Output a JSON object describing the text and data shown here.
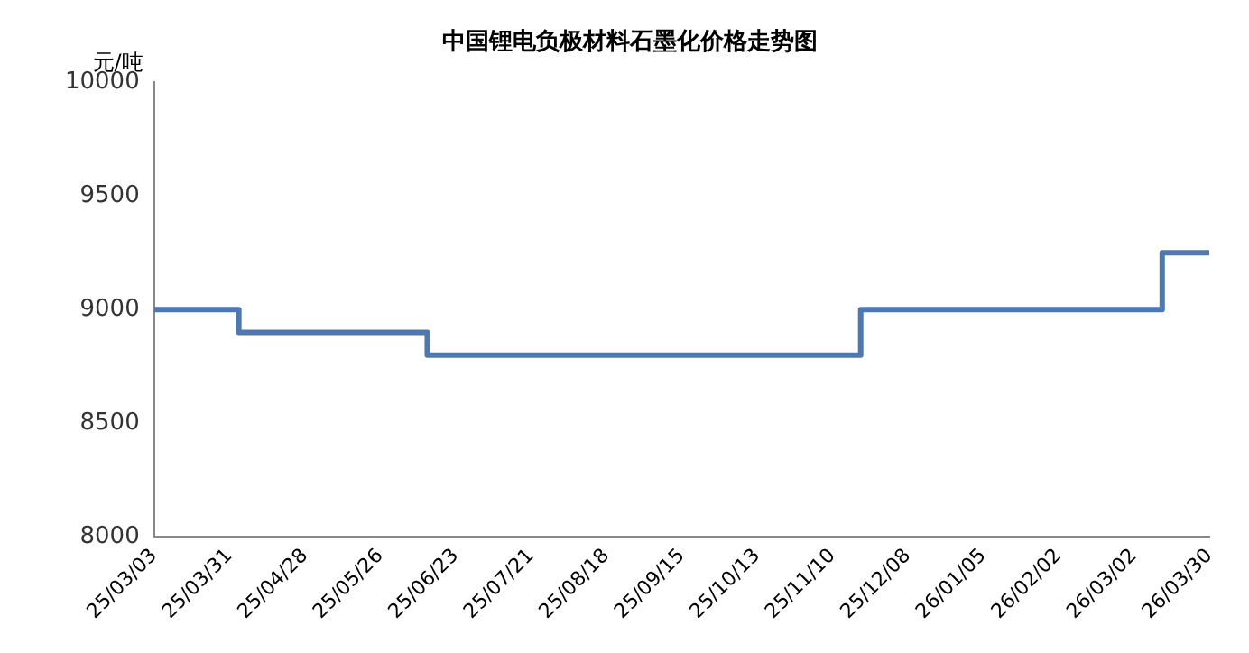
{
  "chart_data": {
    "type": "step",
    "title": "中国锂电负极材料石墨化价格走势图",
    "ylabel": "元/吨",
    "categories": [
      "25/03/03",
      null,
      null,
      null,
      "25/03/31",
      null,
      null,
      null,
      "25/04/28",
      null,
      null,
      null,
      "25/05/26",
      null,
      null,
      null,
      "25/06/23",
      null,
      null,
      null,
      "25/07/21",
      null,
      null,
      null,
      "25/08/18",
      null,
      null,
      null,
      "25/09/15",
      null,
      null,
      null,
      "25/10/13",
      null,
      null,
      null,
      "25/11/10",
      null,
      null,
      null,
      "25/12/08",
      null,
      null,
      null,
      "26/01/05",
      null,
      null,
      null,
      "26/02/02",
      null,
      null,
      null,
      "26/03/02",
      null,
      null,
      null,
      "26/03/30"
    ],
    "series": [
      {
        "color": "#4f77b0",
        "values": [
          9000,
          9000,
          9000,
          9000,
          9000,
          8900,
          8900,
          8900,
          8900,
          8900,
          8900,
          8900,
          8900,
          8900,
          8900,
          8800,
          8800,
          8800,
          8800,
          8800,
          8800,
          8800,
          8800,
          8800,
          8800,
          8800,
          8800,
          8800,
          8800,
          8800,
          8800,
          8800,
          8800,
          8800,
          8800,
          8800,
          8800,
          8800,
          9000,
          9000,
          9000,
          9000,
          9000,
          9000,
          9000,
          9000,
          9000,
          9000,
          9000,
          9000,
          9000,
          9000,
          9000,
          9000,
          9250,
          9250,
          9250
        ]
      }
    ],
    "ylim": [
      8000,
      10000
    ],
    "yticks": [
      8000,
      8500,
      9000,
      9500,
      10000
    ],
    "grid": false,
    "legend": false
  }
}
